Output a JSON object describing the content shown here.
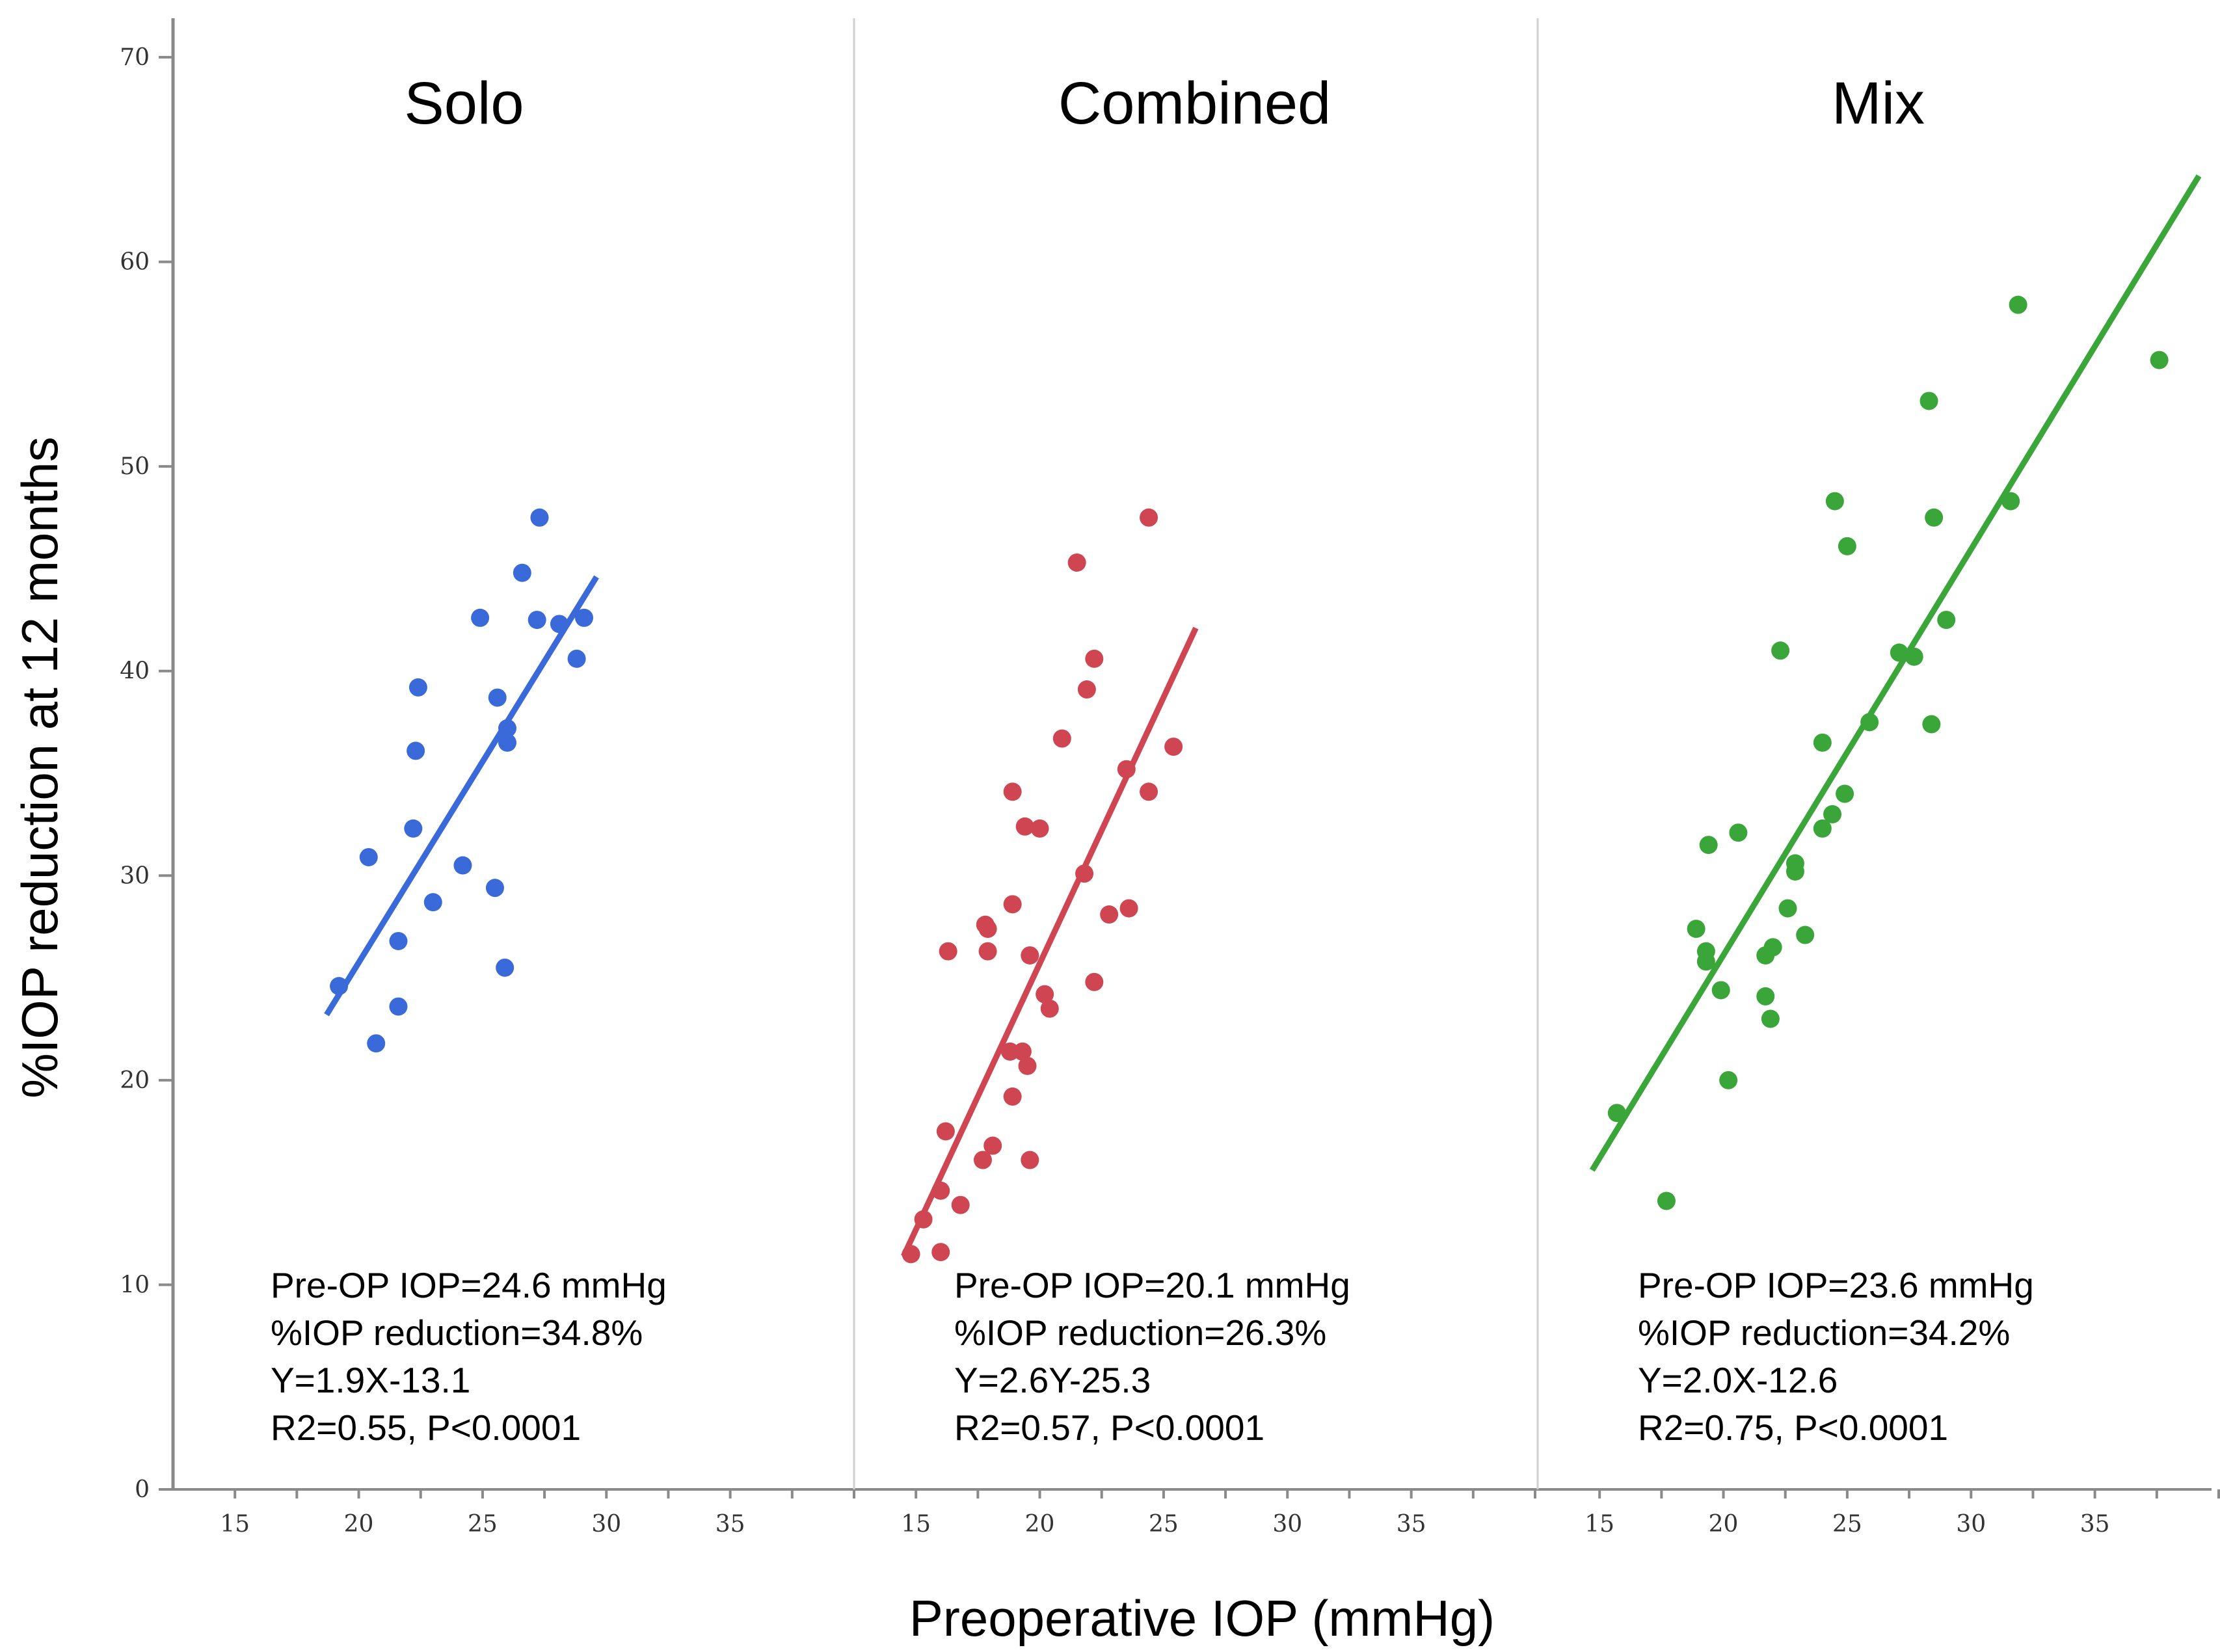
{
  "chart_data": {
    "type": "scatter",
    "xlabel": "Preoperative IOP (mmHg)",
    "ylabel": "%IOP reduction at 12 months",
    "ylim": [
      0,
      70
    ],
    "yticks": [
      0,
      10,
      20,
      30,
      40,
      50,
      60,
      70
    ],
    "xlim": [
      12.5,
      40
    ],
    "xticks": [
      15,
      20,
      25,
      30,
      35
    ],
    "grid": false,
    "panels": [
      {
        "title": "Solo",
        "color": "#3a6ad9",
        "annotation": [
          "Pre-OP IOP=24.6 mmHg",
          "%IOP reduction=34.8%",
          "Y=1.9X-13.1",
          "R2=0.55, P<0.0001"
        ],
        "fit_line": {
          "x": [
            18.7,
            29.6
          ],
          "y": [
            23.2,
            44.6
          ]
        },
        "points": [
          [
            19.2,
            24.6
          ],
          [
            20.4,
            30.9
          ],
          [
            20.7,
            21.8
          ],
          [
            21.6,
            26.8
          ],
          [
            21.6,
            23.6
          ],
          [
            22.2,
            32.3
          ],
          [
            22.3,
            36.1
          ],
          [
            22.4,
            39.2
          ],
          [
            23.0,
            28.7
          ],
          [
            24.2,
            30.5
          ],
          [
            24.9,
            42.6
          ],
          [
            25.5,
            29.4
          ],
          [
            25.6,
            38.7
          ],
          [
            25.9,
            25.5
          ],
          [
            26.0,
            37.2
          ],
          [
            26.0,
            36.5
          ],
          [
            26.6,
            44.8
          ],
          [
            27.2,
            42.5
          ],
          [
            27.3,
            47.5
          ],
          [
            28.1,
            42.3
          ],
          [
            28.8,
            40.6
          ],
          [
            29.1,
            42.6
          ]
        ]
      },
      {
        "title": "Combined",
        "color": "#cf4552",
        "annotation": [
          "Pre-OP IOP=20.1 mmHg",
          "%IOP reduction=26.3%",
          "Y=2.6Y-25.3",
          "R2=0.57, P<0.0001"
        ],
        "fit_line": {
          "x": [
            14.5,
            26.3
          ],
          "y": [
            11.4,
            42.1
          ]
        },
        "points": [
          [
            14.8,
            11.5
          ],
          [
            15.3,
            13.2
          ],
          [
            16.0,
            14.6
          ],
          [
            16.0,
            11.6
          ],
          [
            16.2,
            17.5
          ],
          [
            16.3,
            26.3
          ],
          [
            16.8,
            13.9
          ],
          [
            17.7,
            16.1
          ],
          [
            17.8,
            27.6
          ],
          [
            17.9,
            27.4
          ],
          [
            17.9,
            26.3
          ],
          [
            18.1,
            16.8
          ],
          [
            18.8,
            21.4
          ],
          [
            18.9,
            34.1
          ],
          [
            18.9,
            28.6
          ],
          [
            18.9,
            19.2
          ],
          [
            19.3,
            21.4
          ],
          [
            19.4,
            32.4
          ],
          [
            19.5,
            20.7
          ],
          [
            19.6,
            26.1
          ],
          [
            19.6,
            16.1
          ],
          [
            20.0,
            32.3
          ],
          [
            20.2,
            24.2
          ],
          [
            20.4,
            23.5
          ],
          [
            20.9,
            36.7
          ],
          [
            21.5,
            45.3
          ],
          [
            21.8,
            30.1
          ],
          [
            21.9,
            39.1
          ],
          [
            22.2,
            40.6
          ],
          [
            22.2,
            24.8
          ],
          [
            22.8,
            28.1
          ],
          [
            23.5,
            35.2
          ],
          [
            23.6,
            28.4
          ],
          [
            24.4,
            47.5
          ],
          [
            24.4,
            34.1
          ],
          [
            25.4,
            36.3
          ]
        ]
      },
      {
        "title": "Mix",
        "color": "#3aa63a",
        "annotation": [
          "Pre-OP IOP=23.6 mmHg",
          "%IOP reduction=34.2%",
          "Y=2.0X-12.6",
          "R2=0.75, P<0.0001"
        ],
        "fit_line": {
          "x": [
            14.7,
            39.2
          ],
          "y": [
            15.6,
            64.2
          ]
        },
        "points": [
          [
            15.7,
            18.4
          ],
          [
            17.7,
            14.1
          ],
          [
            18.9,
            27.4
          ],
          [
            19.3,
            26.3
          ],
          [
            19.3,
            25.8
          ],
          [
            19.4,
            31.5
          ],
          [
            19.9,
            24.4
          ],
          [
            20.2,
            20.0
          ],
          [
            20.6,
            32.1
          ],
          [
            21.7,
            26.1
          ],
          [
            21.7,
            24.1
          ],
          [
            21.9,
            23.0
          ],
          [
            22.0,
            26.5
          ],
          [
            22.3,
            41.0
          ],
          [
            22.6,
            28.4
          ],
          [
            22.9,
            30.6
          ],
          [
            22.9,
            30.2
          ],
          [
            23.3,
            27.1
          ],
          [
            24.0,
            36.5
          ],
          [
            24.0,
            32.3
          ],
          [
            24.4,
            33.0
          ],
          [
            24.5,
            48.3
          ],
          [
            24.9,
            34.0
          ],
          [
            25.0,
            46.1
          ],
          [
            25.9,
            37.5
          ],
          [
            27.1,
            40.9
          ],
          [
            27.7,
            40.7
          ],
          [
            28.3,
            53.2
          ],
          [
            28.4,
            37.4
          ],
          [
            28.5,
            47.5
          ],
          [
            29.0,
            42.5
          ],
          [
            31.6,
            48.3
          ],
          [
            31.9,
            57.9
          ],
          [
            37.6,
            55.2
          ]
        ]
      }
    ]
  }
}
